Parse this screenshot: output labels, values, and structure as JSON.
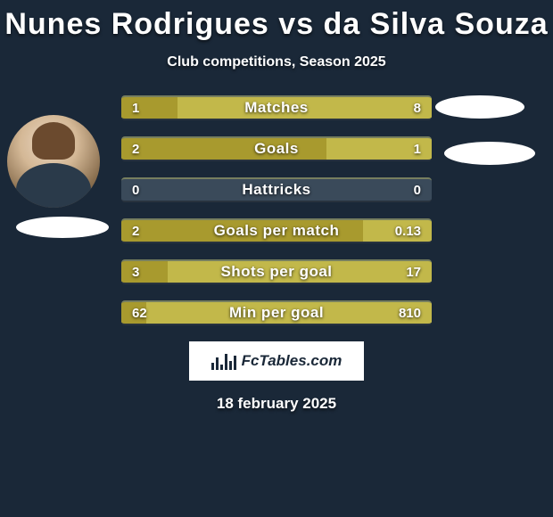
{
  "title": "Nunes Rodrigues vs da Silva Souza",
  "subtitle": "Club competitions, Season 2025",
  "date": "18 february 2025",
  "logo_text": "FcTables.com",
  "colors": {
    "background": "#1a2838",
    "left_bar": "#a89a2e",
    "right_bar": "#c2b84a",
    "neutral_bar": "#3a4a5a",
    "text": "#ffffff"
  },
  "stats": [
    {
      "label": "Matches",
      "left_value": "1",
      "right_value": "8",
      "left_pct": 18,
      "right_pct": 82
    },
    {
      "label": "Goals",
      "left_value": "2",
      "right_value": "1",
      "left_pct": 66,
      "right_pct": 34
    },
    {
      "label": "Hattricks",
      "left_value": "0",
      "right_value": "0",
      "left_pct": 0,
      "right_pct": 0
    },
    {
      "label": "Goals per match",
      "left_value": "2",
      "right_value": "0.13",
      "left_pct": 78,
      "right_pct": 22
    },
    {
      "label": "Shots per goal",
      "left_value": "3",
      "right_value": "17",
      "left_pct": 15,
      "right_pct": 85
    },
    {
      "label": "Min per goal",
      "left_value": "62",
      "right_value": "810",
      "left_pct": 8,
      "right_pct": 92
    }
  ],
  "logo_bar_heights": [
    8,
    14,
    6,
    18,
    10,
    16
  ]
}
